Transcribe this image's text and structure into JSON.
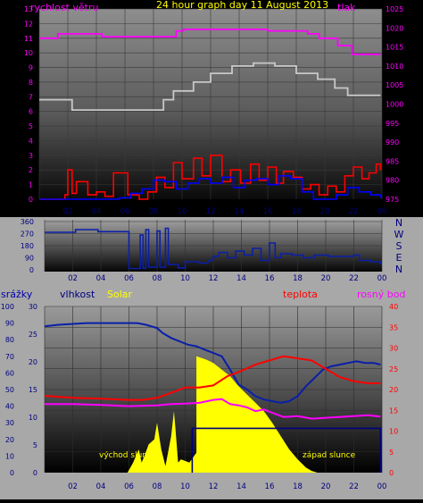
{
  "chart_data": [
    {
      "type": "line",
      "title": "24 hour graph day   11 August 2013",
      "left_axis_label": "rychlost větru",
      "right_axis_label": "tlak",
      "x_ticks": [
        "02",
        "04",
        "06",
        "08",
        "10",
        "12",
        "14",
        "16",
        "18",
        "20",
        "22",
        "00"
      ],
      "y_left_ticks": [
        "0",
        "1",
        "2",
        "3",
        "4",
        "5",
        "6",
        "7",
        "8",
        "9",
        "10",
        "11",
        "12",
        "13"
      ],
      "y_right_ticks": [
        "975",
        "980",
        "985",
        "990",
        "995",
        "1000",
        "1005",
        "1010",
        "1015",
        "1020",
        "1025"
      ],
      "ylim_left": [
        0,
        13
      ],
      "ylim_right": [
        975,
        1025
      ],
      "series": [
        {
          "color": "#ff00ff",
          "x": [
            0,
            1.3,
            1.3,
            4.4,
            4.4,
            9.6,
            9.6,
            10.1,
            10.1,
            16,
            16,
            18.8,
            18.8,
            19.6,
            19.6,
            20.9,
            20.9,
            21.9,
            21.9,
            23.9
          ],
          "y": [
            11,
            11,
            11.3,
            11.3,
            11.1,
            11.1,
            11.5,
            11.5,
            11.6,
            11.6,
            11.5,
            11.5,
            11.3,
            11.3,
            11,
            11,
            10.5,
            10.5,
            9.9,
            9.9
          ]
        },
        {
          "color": "#c8c8c8",
          "x": [
            0,
            2.3,
            2.3,
            8.7,
            8.7,
            9.4,
            9.4,
            10.8,
            10.8,
            12,
            12,
            13.5,
            13.5,
            15,
            15,
            16.5,
            16.5,
            18,
            18,
            19.5,
            19.5,
            20.7,
            20.7,
            21.6,
            21.6,
            23.9
          ],
          "y": [
            6.8,
            6.8,
            6.1,
            6.1,
            6.8,
            6.8,
            7.4,
            7.4,
            8,
            8,
            8.6,
            8.6,
            9.1,
            9.1,
            9.3,
            9.3,
            9.1,
            9.1,
            8.6,
            8.6,
            8.2,
            8.2,
            7.6,
            7.6,
            7.1,
            7.1
          ]
        },
        {
          "color": "#ff0000",
          "x": [
            0,
            1.8,
            2,
            2.3,
            2.6,
            3.4,
            4,
            4.6,
            5.2,
            6.2,
            7,
            7.6,
            8.2,
            8.8,
            9.4,
            10,
            10.8,
            11.4,
            12,
            12.8,
            13.4,
            14.1,
            14.8,
            15.4,
            16,
            16.6,
            17.1,
            17.8,
            18.4,
            19,
            19.6,
            20.2,
            20.8,
            21.4,
            22,
            22.6,
            23.1,
            23.6,
            23.9
          ],
          "y": [
            0,
            0.3,
            2,
            0.4,
            1.2,
            0.3,
            0.5,
            0.2,
            1.8,
            0.3,
            0,
            0.5,
            1.5,
            0.8,
            2.5,
            1.4,
            2.8,
            1.6,
            3,
            1.2,
            2,
            1.1,
            2.4,
            1.3,
            2.2,
            1.1,
            1.9,
            1.5,
            0.7,
            1,
            0.3,
            0.9,
            0.5,
            1.6,
            2.2,
            1.4,
            1.8,
            2.4,
            2
          ]
        },
        {
          "color": "#0000ff",
          "x": [
            0,
            4.8,
            5.6,
            6.4,
            7.2,
            8,
            8.8,
            9.6,
            10.4,
            11.2,
            12,
            12.8,
            13.6,
            14.4,
            15.2,
            16,
            16.8,
            17.6,
            18.4,
            19.2,
            20,
            20.8,
            21.6,
            22.4,
            23.2,
            23.9
          ],
          "y": [
            0,
            0,
            0.1,
            0.4,
            0.7,
            1.3,
            1.2,
            0.7,
            1.1,
            1.4,
            1.1,
            1.5,
            0.8,
            1.3,
            1.4,
            1,
            1.6,
            1.4,
            0.5,
            0,
            0,
            0.3,
            0.8,
            0.5,
            0.3,
            0.1
          ]
        }
      ]
    },
    {
      "type": "line",
      "title": "",
      "right_labels": [
        "N",
        "W",
        "S",
        "E",
        "N"
      ],
      "y_ticks": [
        "0",
        "90",
        "180",
        "270",
        "360"
      ],
      "ylim": [
        0,
        360
      ],
      "x_ticks": [
        "02",
        "04",
        "06",
        "08",
        "10",
        "12",
        "14",
        "16",
        "18",
        "20",
        "22",
        "00"
      ],
      "series": [
        {
          "color": "#0a1fa8",
          "x": [
            0,
            2,
            2.2,
            3.6,
            3.8,
            5.8,
            6,
            6.8,
            7,
            7.2,
            7.4,
            8,
            8.2,
            8.6,
            8.8,
            9.5,
            10,
            11,
            11.6,
            12,
            12.4,
            13,
            13.6,
            14.2,
            14.8,
            15.4,
            16,
            16.4,
            16.8,
            17.6,
            18.4,
            19.2,
            20.2,
            21.2,
            22,
            22.4,
            23.2,
            23.9
          ],
          "y": [
            280,
            280,
            300,
            300,
            285,
            285,
            10,
            260,
            10,
            300,
            20,
            290,
            20,
            310,
            40,
            15,
            60,
            50,
            70,
            100,
            130,
            90,
            140,
            110,
            160,
            70,
            200,
            90,
            120,
            110,
            90,
            110,
            100,
            100,
            110,
            70,
            60,
            40
          ]
        }
      ]
    },
    {
      "type": "line",
      "title": "",
      "labels": {
        "rain": "srážky",
        "humidity": "vlhkost",
        "solar": "Solar",
        "temperature": "teplota",
        "dew": "rosný bod"
      },
      "annotations": [
        "východ slunce",
        "západ slunce"
      ],
      "y_left_far_ticks": [
        "0",
        "10",
        "20",
        "30",
        "40",
        "50",
        "60",
        "70",
        "80",
        "90",
        "100"
      ],
      "y_left_ticks": [
        "0",
        "5",
        "10",
        "15",
        "20",
        "25",
        "30"
      ],
      "y_right_ticks": [
        "0",
        "5",
        "10",
        "15",
        "20",
        "25",
        "30",
        "35",
        "40"
      ],
      "ylim_humidity": [
        0,
        100
      ],
      "ylim_rain": [
        0,
        30
      ],
      "ylim_temperature": [
        0,
        40
      ],
      "x_ticks": [
        "02",
        "04",
        "06",
        "08",
        "10",
        "12",
        "14",
        "16",
        "18",
        "20",
        "22",
        "00"
      ],
      "series": [
        {
          "name": "vlhkost",
          "color": "#0a1fa8",
          "x": [
            0,
            1,
            3,
            5,
            6.6,
            7.2,
            8,
            8.4,
            9,
            9.6,
            10.2,
            10.8,
            11.4,
            12,
            12.6,
            13.2,
            13.8,
            14.4,
            15,
            15.6,
            16.2,
            16.8,
            17.4,
            18,
            18.6,
            19.2,
            19.8,
            20.4,
            21,
            21.6,
            22.2,
            22.8,
            23.4,
            23.9
          ],
          "y": [
            88,
            89,
            90,
            90,
            90,
            89,
            87,
            84,
            81,
            79,
            77,
            76,
            74,
            72,
            70,
            62,
            53,
            50,
            46,
            44,
            43,
            42,
            43,
            46,
            52,
            57,
            62,
            64,
            65,
            66,
            67,
            66,
            66,
            65
          ]
        },
        {
          "name": "teplota",
          "color": "#ff0000",
          "x": [
            0,
            2,
            4,
            6,
            7,
            8,
            9,
            10,
            11,
            12,
            13,
            14,
            15,
            16,
            17,
            18,
            19,
            20,
            21,
            22,
            23,
            23.9
          ],
          "y": [
            18.5,
            18,
            17.8,
            17.5,
            17.5,
            18,
            19.2,
            20.5,
            20.5,
            21,
            23.2,
            24.5,
            26,
            27,
            28,
            27.5,
            27,
            25,
            23,
            22,
            21.5,
            21.5
          ]
        },
        {
          "name": "rosný bod",
          "color": "#ff00ff",
          "x": [
            0,
            2,
            4,
            6,
            8,
            9,
            10,
            11,
            12,
            12.6,
            13.2,
            13.8,
            14.4,
            15,
            15.6,
            16.2,
            17,
            18,
            19,
            20,
            21,
            22,
            23,
            23.9
          ],
          "y": [
            16.5,
            16.5,
            16.3,
            16,
            16.2,
            16.5,
            16.6,
            16.8,
            17.5,
            17.7,
            16.5,
            16.2,
            15.7,
            14.8,
            15.2,
            14.4,
            13.4,
            13.6,
            13,
            13.2,
            13.4,
            13.6,
            13.8,
            13.5
          ]
        },
        {
          "name": "srážky",
          "color": "#000080",
          "segments": [
            [
              [
                10.5,
                0
              ],
              [
                10.5,
                8
              ],
              [
                23.9,
                8
              ],
              [
                23.9,
                0
              ]
            ]
          ]
        },
        {
          "name": "Solar",
          "color": "#ffff00",
          "x": [
            5.9,
            6.3,
            6.7,
            6.9,
            7.1,
            7.4,
            7.8,
            8,
            8.3,
            8.6,
            9,
            9.2,
            9.3,
            9.5,
            9.7,
            10.3,
            10.8,
            10.8,
            11.5,
            12,
            12.6,
            13.2,
            13.8,
            14.4,
            15,
            15.6,
            16.2,
            16.8,
            17.4,
            18,
            18.6,
            19,
            19.4
          ],
          "y": [
            0,
            6,
            14,
            6,
            10,
            17,
            20,
            30,
            14,
            4,
            22,
            37,
            27,
            6,
            8,
            6,
            12,
            70,
            68,
            66,
            62,
            58,
            52,
            47,
            42,
            37,
            30,
            22,
            14,
            8,
            3,
            1,
            0
          ]
        }
      ]
    }
  ]
}
